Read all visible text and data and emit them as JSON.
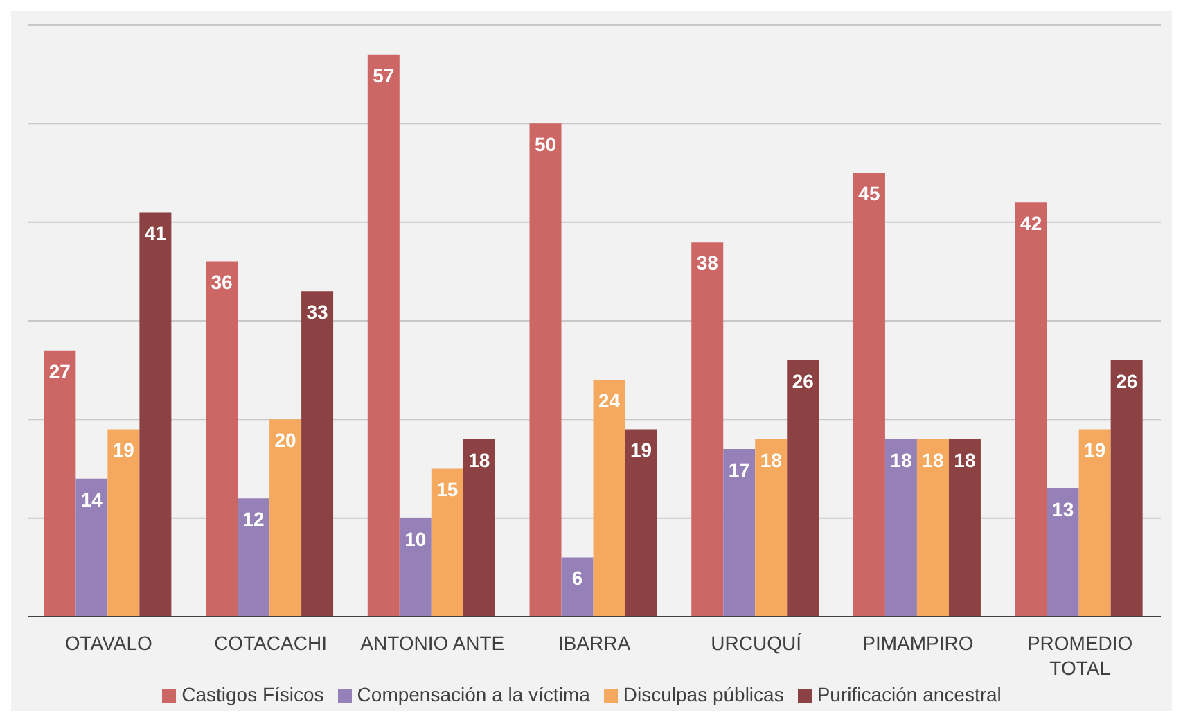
{
  "chart_data": {
    "type": "bar",
    "categories": [
      "OTAVALO",
      "COTACACHI",
      "ANTONIO ANTE",
      "IBARRA",
      "URCUQUÍ",
      "PIMAMPIRO",
      "PROMEDIO TOTAL"
    ],
    "series": [
      {
        "name": "Castigos Físicos",
        "color": "#cd6766",
        "values": [
          27,
          36,
          57,
          50,
          38,
          45,
          42
        ]
      },
      {
        "name": "Compensación a la víctima",
        "color": "#9580b8",
        "values": [
          14,
          12,
          10,
          6,
          17,
          18,
          13
        ]
      },
      {
        "name": "Disculpas públicas",
        "color": "#f5a95e",
        "values": [
          19,
          20,
          15,
          24,
          18,
          18,
          19
        ]
      },
      {
        "name": "Purificación ancestral",
        "color": "#8c4242",
        "values": [
          41,
          33,
          18,
          19,
          26,
          18,
          26
        ]
      }
    ],
    "ylim": [
      0,
      60
    ],
    "tick_labels": "x",
    "grid": "y",
    "legend": "bottom",
    "data_labels": true
  }
}
